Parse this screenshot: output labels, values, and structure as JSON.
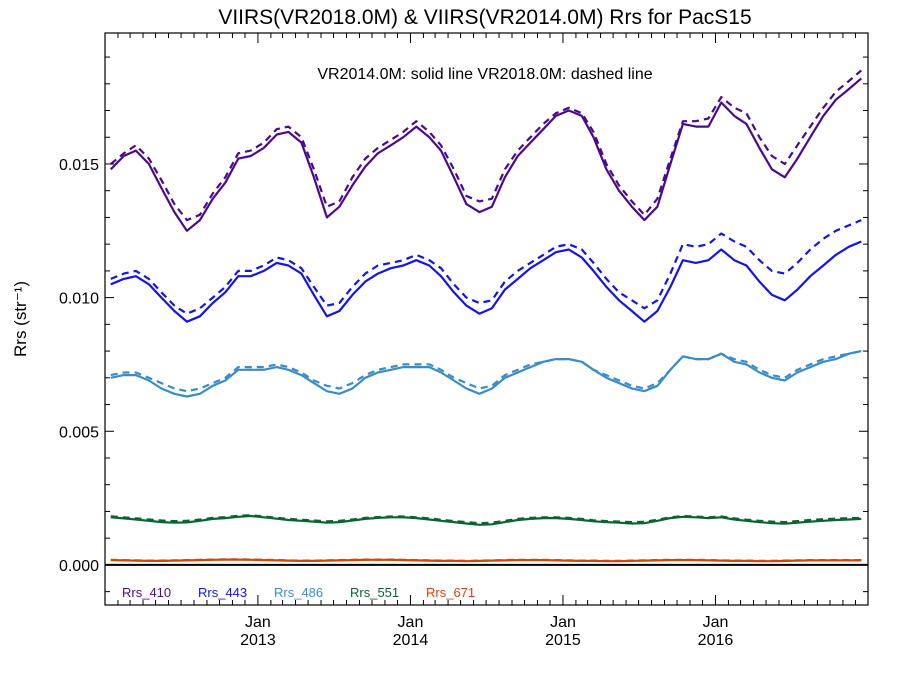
{
  "chart_data": {
    "type": "line",
    "title": "VIIRS(VR2018.0M) & VIIRS(VR2014.0M)  Rrs for PacS15",
    "annotation": "VR2014.0M: solid line   VR2018.0M: dashed line",
    "ylabel": "Rrs (str⁻¹)",
    "xlabel": "",
    "ylim": [
      -0.0015,
      0.0199
    ],
    "xlim": [
      "2012-01-01",
      "2016-12-31"
    ],
    "y_ticks": [
      {
        "value": 0.0,
        "label": "0.000"
      },
      {
        "value": 0.005,
        "label": "0.005"
      },
      {
        "value": 0.01,
        "label": "0.010"
      },
      {
        "value": 0.015,
        "label": "0.015"
      }
    ],
    "x_major_ticks": [
      {
        "date": "2013-01-01",
        "month": "Jan",
        "year": "2013"
      },
      {
        "date": "2014-01-01",
        "month": "Jan",
        "year": "2014"
      },
      {
        "date": "2015-01-01",
        "month": "Jan",
        "year": "2015"
      },
      {
        "date": "2016-01-01",
        "month": "Jan",
        "year": "2016"
      }
    ],
    "zero_line": true,
    "grid": false,
    "legend_position": "bottom-left",
    "x": [
      "2012-01",
      "2012-02",
      "2012-03",
      "2012-04",
      "2012-05",
      "2012-06",
      "2012-07",
      "2012-08",
      "2012-09",
      "2012-10",
      "2012-11",
      "2012-12",
      "2013-01",
      "2013-02",
      "2013-03",
      "2013-04",
      "2013-05",
      "2013-06",
      "2013-07",
      "2013-08",
      "2013-09",
      "2013-10",
      "2013-11",
      "2013-12",
      "2014-01",
      "2014-02",
      "2014-03",
      "2014-04",
      "2014-05",
      "2014-06",
      "2014-07",
      "2014-08",
      "2014-09",
      "2014-10",
      "2014-11",
      "2014-12",
      "2015-01",
      "2015-02",
      "2015-03",
      "2015-04",
      "2015-05",
      "2015-06",
      "2015-07",
      "2015-08",
      "2015-09",
      "2015-10",
      "2015-11",
      "2015-12",
      "2016-01",
      "2016-02",
      "2016-03",
      "2016-04",
      "2016-05",
      "2016-06",
      "2016-07",
      "2016-08",
      "2016-09",
      "2016-10",
      "2016-11",
      "2016-12"
    ],
    "series": [
      {
        "name": "Rrs_410",
        "version": "VR2014.0M",
        "style": "solid",
        "color": "#4b0a8c",
        "values": [
          0.0148,
          0.0153,
          0.0155,
          0.015,
          0.0141,
          0.0132,
          0.0125,
          0.0129,
          0.0137,
          0.0143,
          0.0152,
          0.0153,
          0.0156,
          0.0161,
          0.0162,
          0.0158,
          0.0145,
          0.013,
          0.0134,
          0.0142,
          0.0149,
          0.0154,
          0.0157,
          0.016,
          0.0164,
          0.016,
          0.0155,
          0.0145,
          0.0135,
          0.0132,
          0.0134,
          0.0145,
          0.0153,
          0.0158,
          0.0163,
          0.0168,
          0.017,
          0.0168,
          0.016,
          0.0148,
          0.014,
          0.0134,
          0.0129,
          0.0134,
          0.015,
          0.0165,
          0.0164,
          0.0164,
          0.0173,
          0.0168,
          0.0165,
          0.0156,
          0.0148,
          0.0145,
          0.0152,
          0.016,
          0.0168,
          0.0174,
          0.0178,
          0.0182
        ]
      },
      {
        "name": "Rrs_410",
        "version": "VR2018.0M",
        "style": "dashed",
        "color": "#4b0a8c",
        "values": [
          0.015,
          0.0154,
          0.0157,
          0.0152,
          0.0144,
          0.0135,
          0.0129,
          0.0131,
          0.0139,
          0.0145,
          0.0154,
          0.0155,
          0.0158,
          0.0163,
          0.0164,
          0.016,
          0.0148,
          0.0134,
          0.0136,
          0.0145,
          0.0152,
          0.0156,
          0.0159,
          0.0162,
          0.0166,
          0.0162,
          0.0157,
          0.0148,
          0.0138,
          0.0136,
          0.0137,
          0.0148,
          0.0155,
          0.016,
          0.0165,
          0.0169,
          0.0171,
          0.0169,
          0.0162,
          0.015,
          0.0142,
          0.0136,
          0.0131,
          0.0137,
          0.0152,
          0.0166,
          0.0166,
          0.0167,
          0.0175,
          0.0171,
          0.0169,
          0.016,
          0.0153,
          0.015,
          0.0157,
          0.0164,
          0.0171,
          0.0177,
          0.0181,
          0.0185
        ]
      },
      {
        "name": "Rrs_443",
        "version": "VR2014.0M",
        "style": "solid",
        "color": "#1414e6",
        "values": [
          0.0105,
          0.0107,
          0.0108,
          0.0105,
          0.01,
          0.0095,
          0.0091,
          0.0093,
          0.0098,
          0.0102,
          0.0108,
          0.0108,
          0.011,
          0.0113,
          0.0112,
          0.0109,
          0.0101,
          0.0093,
          0.0095,
          0.0101,
          0.0106,
          0.0109,
          0.0111,
          0.0112,
          0.0114,
          0.0112,
          0.0108,
          0.0102,
          0.0097,
          0.0094,
          0.0096,
          0.0103,
          0.0107,
          0.0111,
          0.0114,
          0.0117,
          0.0118,
          0.0115,
          0.011,
          0.0104,
          0.0099,
          0.0095,
          0.0091,
          0.0095,
          0.0104,
          0.0114,
          0.0113,
          0.0114,
          0.0118,
          0.0114,
          0.0112,
          0.0106,
          0.0101,
          0.0099,
          0.0103,
          0.0108,
          0.0112,
          0.0116,
          0.0119,
          0.0121
        ]
      },
      {
        "name": "Rrs_443",
        "version": "VR2018.0M",
        "style": "dashed",
        "color": "#1414e6",
        "values": [
          0.0107,
          0.0109,
          0.011,
          0.0107,
          0.0102,
          0.0097,
          0.0094,
          0.0096,
          0.01,
          0.0104,
          0.011,
          0.011,
          0.0112,
          0.0115,
          0.0114,
          0.0111,
          0.0104,
          0.0097,
          0.0098,
          0.0104,
          0.0109,
          0.0112,
          0.0113,
          0.0114,
          0.0116,
          0.0114,
          0.0111,
          0.0105,
          0.01,
          0.0098,
          0.0099,
          0.0106,
          0.011,
          0.0113,
          0.0116,
          0.0119,
          0.012,
          0.0118,
          0.0113,
          0.0107,
          0.0102,
          0.0099,
          0.0096,
          0.0099,
          0.0109,
          0.012,
          0.0119,
          0.012,
          0.0124,
          0.0121,
          0.0119,
          0.0114,
          0.011,
          0.0109,
          0.0113,
          0.0118,
          0.0122,
          0.0125,
          0.0127,
          0.0129
        ]
      },
      {
        "name": "Rrs_486",
        "version": "VR2014.0M",
        "style": "solid",
        "color": "#3a8cc8",
        "values": [
          0.007,
          0.0071,
          0.0071,
          0.0069,
          0.0066,
          0.0064,
          0.0063,
          0.0064,
          0.0067,
          0.0069,
          0.0073,
          0.0073,
          0.0073,
          0.0074,
          0.0073,
          0.0071,
          0.0068,
          0.0065,
          0.0064,
          0.0066,
          0.007,
          0.0072,
          0.0073,
          0.0074,
          0.0074,
          0.0074,
          0.0072,
          0.0069,
          0.0066,
          0.0064,
          0.0066,
          0.007,
          0.0072,
          0.0074,
          0.0076,
          0.0077,
          0.0077,
          0.0076,
          0.0073,
          0.007,
          0.0068,
          0.0066,
          0.0065,
          0.0067,
          0.0073,
          0.0078,
          0.0077,
          0.0077,
          0.0079,
          0.0076,
          0.0075,
          0.0072,
          0.007,
          0.0069,
          0.0072,
          0.0074,
          0.0076,
          0.0077,
          0.0079,
          0.008
        ]
      },
      {
        "name": "Rrs_486",
        "version": "VR2018.0M",
        "style": "dashed",
        "color": "#3a8cc8",
        "values": [
          0.0071,
          0.0072,
          0.0072,
          0.007,
          0.0068,
          0.0066,
          0.0065,
          0.0066,
          0.0068,
          0.007,
          0.0074,
          0.0074,
          0.0074,
          0.0075,
          0.0074,
          0.0072,
          0.0069,
          0.0067,
          0.0066,
          0.0068,
          0.0071,
          0.0073,
          0.0074,
          0.0075,
          0.0075,
          0.0075,
          0.0073,
          0.007,
          0.0068,
          0.0066,
          0.0067,
          0.0071,
          0.0073,
          0.0075,
          0.0076,
          0.0077,
          0.0077,
          0.0076,
          0.0073,
          0.0071,
          0.0069,
          0.0067,
          0.0066,
          0.0068,
          0.0073,
          0.0078,
          0.0077,
          0.0077,
          0.0079,
          0.0077,
          0.0076,
          0.0073,
          0.0071,
          0.007,
          0.0073,
          0.0075,
          0.0077,
          0.0078,
          0.0079,
          0.008
        ]
      },
      {
        "name": "Rrs_551",
        "version": "VR2014.0M",
        "style": "solid",
        "color": "#0a6432",
        "values": [
          0.00178,
          0.00174,
          0.0017,
          0.00165,
          0.0016,
          0.00158,
          0.00159,
          0.00165,
          0.00172,
          0.00175,
          0.0018,
          0.00183,
          0.00178,
          0.00173,
          0.00168,
          0.00165,
          0.00162,
          0.00158,
          0.0016,
          0.00166,
          0.00172,
          0.00176,
          0.00178,
          0.00178,
          0.00175,
          0.0017,
          0.00165,
          0.0016,
          0.00155,
          0.0015,
          0.00152,
          0.0016,
          0.00168,
          0.00172,
          0.00175,
          0.00175,
          0.00172,
          0.00168,
          0.00163,
          0.0016,
          0.00158,
          0.00155,
          0.00156,
          0.00165,
          0.00175,
          0.0018,
          0.00178,
          0.00175,
          0.00178,
          0.0017,
          0.00165,
          0.0016,
          0.00156,
          0.00154,
          0.00158,
          0.00162,
          0.00165,
          0.00168,
          0.0017,
          0.00172
        ]
      },
      {
        "name": "Rrs_551",
        "version": "VR2018.0M",
        "style": "dashed",
        "color": "#0a6432",
        "values": [
          0.00182,
          0.00178,
          0.00174,
          0.0017,
          0.00166,
          0.00164,
          0.00165,
          0.0017,
          0.00176,
          0.00179,
          0.00184,
          0.00186,
          0.00181,
          0.00176,
          0.00172,
          0.00169,
          0.00166,
          0.00163,
          0.00165,
          0.0017,
          0.00176,
          0.00179,
          0.00181,
          0.00181,
          0.00178,
          0.00174,
          0.00169,
          0.00164,
          0.0016,
          0.00156,
          0.00158,
          0.00165,
          0.00172,
          0.00176,
          0.00178,
          0.00178,
          0.00176,
          0.00172,
          0.00167,
          0.00164,
          0.00162,
          0.0016,
          0.00161,
          0.00169,
          0.00178,
          0.00183,
          0.00181,
          0.00178,
          0.00181,
          0.00174,
          0.00169,
          0.00165,
          0.00162,
          0.0016,
          0.00164,
          0.00168,
          0.00171,
          0.00173,
          0.00175,
          0.00176
        ]
      },
      {
        "name": "Rrs_671",
        "version": "VR2014.0M",
        "style": "solid",
        "color": "#d2460a",
        "values": [
          0.00018,
          0.00017,
          0.00016,
          0.00015,
          0.00015,
          0.00016,
          0.00017,
          0.00018,
          0.00019,
          0.0002,
          0.0002,
          0.00019,
          0.00018,
          0.00017,
          0.00016,
          0.00015,
          0.00015,
          0.00016,
          0.00017,
          0.00018,
          0.00019,
          0.00019,
          0.00019,
          0.00018,
          0.00017,
          0.00016,
          0.00015,
          0.00015,
          0.00014,
          0.00015,
          0.00016,
          0.00017,
          0.00018,
          0.00018,
          0.00018,
          0.00017,
          0.00016,
          0.00015,
          0.00015,
          0.00014,
          0.00014,
          0.00015,
          0.00016,
          0.00017,
          0.00018,
          0.00018,
          0.00018,
          0.00017,
          0.00016,
          0.00015,
          0.00015,
          0.00014,
          0.00014,
          0.00015,
          0.00016,
          0.00017,
          0.00017,
          0.00017,
          0.00017,
          0.00017
        ]
      },
      {
        "name": "Rrs_671",
        "version": "VR2018.0M",
        "style": "dashed",
        "color": "#d2460a",
        "values": [
          0.00019,
          0.00018,
          0.00017,
          0.00016,
          0.00016,
          0.00017,
          0.00018,
          0.00019,
          0.0002,
          0.00021,
          0.00021,
          0.0002,
          0.00019,
          0.00018,
          0.00017,
          0.00016,
          0.00016,
          0.00017,
          0.00018,
          0.00019,
          0.0002,
          0.0002,
          0.0002,
          0.00019,
          0.00018,
          0.00017,
          0.00016,
          0.00016,
          0.00015,
          0.00016,
          0.00017,
          0.00018,
          0.00019,
          0.00019,
          0.00019,
          0.00018,
          0.00017,
          0.00016,
          0.00016,
          0.00015,
          0.00015,
          0.00016,
          0.00017,
          0.00018,
          0.00019,
          0.00019,
          0.00019,
          0.00018,
          0.00017,
          0.00016,
          0.00016,
          0.00015,
          0.00015,
          0.00016,
          0.00017,
          0.00018,
          0.00018,
          0.00018,
          0.00018,
          0.00018
        ]
      }
    ],
    "legend": [
      {
        "label": "Rrs_410",
        "color": "#4b0a8c"
      },
      {
        "label": "Rrs_443",
        "color": "#1414e6"
      },
      {
        "label": "Rrs_486",
        "color": "#3a8cc8"
      },
      {
        "label": "Rrs_551",
        "color": "#0a6432"
      },
      {
        "label": "Rrs_671",
        "color": "#d2460a"
      }
    ]
  }
}
